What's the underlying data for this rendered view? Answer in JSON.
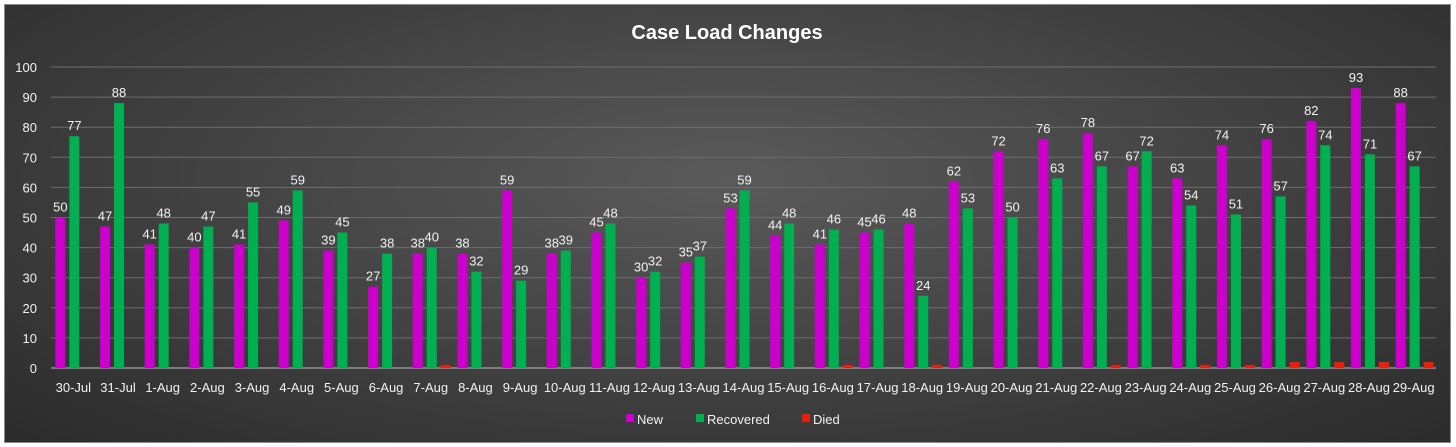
{
  "chart_data": {
    "type": "bar",
    "title": "Case Load Changes",
    "xlabel": "",
    "ylabel": "",
    "ylim": [
      0,
      100
    ],
    "yticks": [
      0,
      10,
      20,
      30,
      40,
      50,
      60,
      70,
      80,
      90,
      100
    ],
    "grid": true,
    "legend_position": "bottom",
    "categories": [
      "30-Jul",
      "31-Jul",
      "1-Aug",
      "2-Aug",
      "3-Aug",
      "4-Aug",
      "5-Aug",
      "6-Aug",
      "7-Aug",
      "8-Aug",
      "9-Aug",
      "10-Aug",
      "11-Aug",
      "12-Aug",
      "13-Aug",
      "14-Aug",
      "15-Aug",
      "16-Aug",
      "17-Aug",
      "18-Aug",
      "19-Aug",
      "20-Aug",
      "21-Aug",
      "22-Aug",
      "23-Aug",
      "24-Aug",
      "25-Aug",
      "26-Aug",
      "27-Aug",
      "28-Aug",
      "29-Aug"
    ],
    "series": [
      {
        "name": "New",
        "color": "#cc00cc",
        "values": [
          50,
          47,
          41,
          40,
          41,
          49,
          39,
          27,
          38,
          38,
          59,
          38,
          45,
          30,
          35,
          53,
          44,
          41,
          45,
          48,
          62,
          72,
          76,
          78,
          67,
          63,
          74,
          76,
          82,
          93,
          88
        ]
      },
      {
        "name": "Recovered",
        "color": "#00b050",
        "values": [
          77,
          88,
          48,
          47,
          55,
          59,
          45,
          38,
          40,
          32,
          29,
          39,
          48,
          32,
          37,
          59,
          48,
          46,
          46,
          24,
          53,
          50,
          63,
          67,
          72,
          54,
          51,
          57,
          74,
          71,
          67
        ]
      },
      {
        "name": "Died",
        "color": "#e81e0e",
        "values": [
          0,
          0,
          0,
          0,
          0,
          0,
          0,
          0,
          1,
          0,
          0,
          0,
          0,
          0,
          0,
          0,
          0,
          1,
          0,
          1,
          0,
          0,
          0,
          1,
          0,
          1,
          1,
          2,
          2,
          2,
          2
        ]
      }
    ]
  }
}
